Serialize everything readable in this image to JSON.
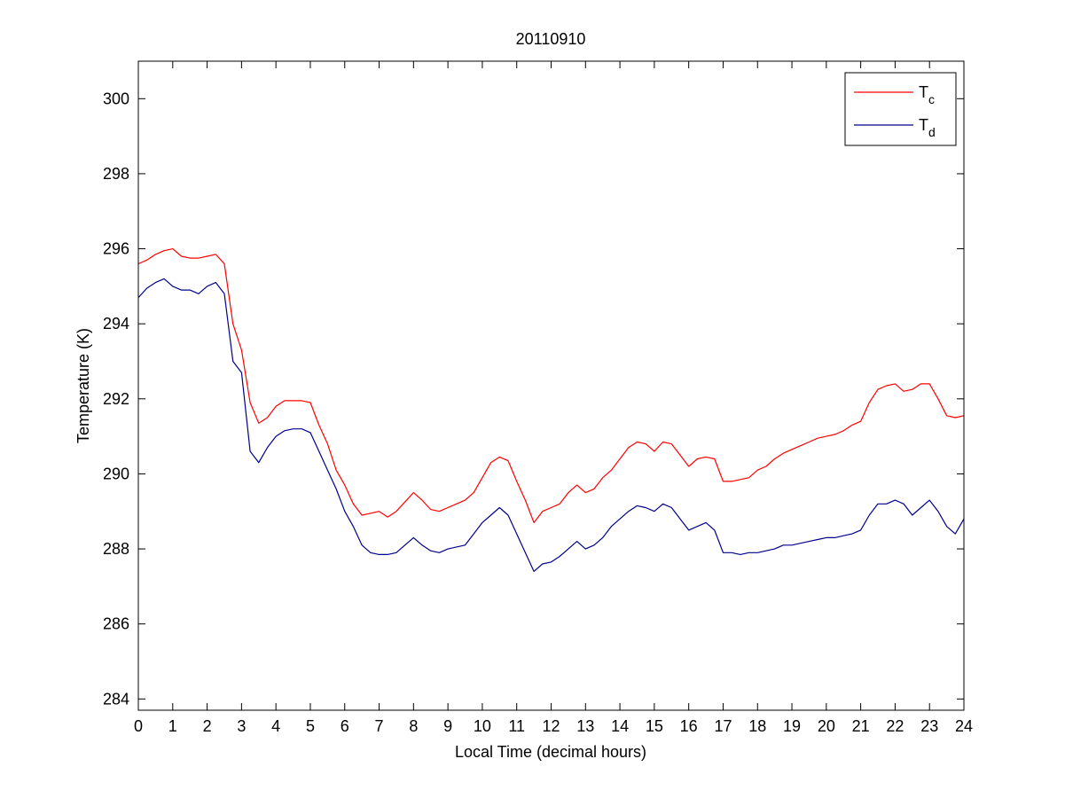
{
  "chart_data": {
    "type": "line",
    "title": "20110910",
    "xlabel": "Local Time (decimal hours)",
    "ylabel": "Temperature (K)",
    "xlim": [
      0,
      24
    ],
    "ylim": [
      283.7,
      301
    ],
    "xticks": [
      0,
      1,
      2,
      3,
      4,
      5,
      6,
      7,
      8,
      9,
      10,
      11,
      12,
      13,
      14,
      15,
      16,
      17,
      18,
      19,
      20,
      21,
      22,
      23,
      24
    ],
    "yticks": [
      284,
      286,
      288,
      290,
      292,
      294,
      296,
      298,
      300
    ],
    "grid": false,
    "legend": {
      "position": "top-right",
      "entries": [
        {
          "main": "T",
          "sub": "c",
          "color": "#ff0000"
        },
        {
          "main": "T",
          "sub": "d",
          "color": "#00008b"
        }
      ]
    },
    "series": [
      {
        "color": "#ff0000",
        "x": [
          0,
          0.25,
          0.5,
          0.75,
          1,
          1.25,
          1.5,
          1.75,
          2,
          2.25,
          2.5,
          2.75,
          3,
          3.25,
          3.5,
          3.75,
          4,
          4.25,
          4.5,
          4.75,
          5,
          5.25,
          5.5,
          5.75,
          6,
          6.25,
          6.5,
          6.75,
          7,
          7.25,
          7.5,
          7.75,
          8,
          8.25,
          8.5,
          8.75,
          9,
          9.25,
          9.5,
          9.75,
          10,
          10.25,
          10.5,
          10.75,
          11,
          11.25,
          11.5,
          11.75,
          12,
          12.25,
          12.5,
          12.75,
          13,
          13.25,
          13.5,
          13.75,
          14,
          14.25,
          14.5,
          14.75,
          15,
          15.25,
          15.5,
          15.75,
          16,
          16.25,
          16.5,
          16.75,
          17,
          17.25,
          17.5,
          17.75,
          18,
          18.25,
          18.5,
          18.75,
          19,
          19.25,
          19.5,
          19.75,
          20,
          20.25,
          20.5,
          20.75,
          21,
          21.25,
          21.5,
          21.75,
          22,
          22.25,
          22.5,
          22.75,
          23,
          23.25,
          23.5,
          23.75,
          24
        ],
        "values": [
          295.6,
          295.7,
          295.85,
          295.95,
          296.0,
          295.8,
          295.75,
          295.75,
          295.8,
          295.85,
          295.6,
          294.0,
          293.3,
          291.9,
          291.35,
          291.5,
          291.8,
          291.95,
          291.95,
          291.95,
          291.9,
          291.3,
          290.8,
          290.1,
          289.7,
          289.2,
          288.9,
          288.95,
          289.0,
          288.85,
          289.0,
          289.25,
          289.5,
          289.3,
          289.05,
          289.0,
          289.1,
          289.2,
          289.3,
          289.5,
          289.9,
          290.3,
          290.45,
          290.35,
          289.8,
          289.3,
          288.7,
          289.0,
          289.1,
          289.2,
          289.5,
          289.7,
          289.5,
          289.6,
          289.9,
          290.1,
          290.4,
          290.7,
          290.85,
          290.8,
          290.6,
          290.85,
          290.8,
          290.5,
          290.2,
          290.4,
          290.45,
          290.4,
          289.8,
          289.8,
          289.85,
          289.9,
          290.1,
          290.2,
          290.4,
          290.55,
          290.65,
          290.75,
          290.85,
          290.95,
          291.0,
          291.05,
          291.15,
          291.3,
          291.4,
          291.9,
          292.25,
          292.35,
          292.4,
          292.2,
          292.25,
          292.4,
          292.4,
          292.0,
          291.55,
          291.5,
          291.55
        ]
      },
      {
        "color": "#00008b",
        "x": [
          0,
          0.25,
          0.5,
          0.75,
          1,
          1.25,
          1.5,
          1.75,
          2,
          2.25,
          2.5,
          2.75,
          3,
          3.25,
          3.5,
          3.75,
          4,
          4.25,
          4.5,
          4.75,
          5,
          5.25,
          5.5,
          5.75,
          6,
          6.25,
          6.5,
          6.75,
          7,
          7.25,
          7.5,
          7.75,
          8,
          8.25,
          8.5,
          8.75,
          9,
          9.25,
          9.5,
          9.75,
          10,
          10.25,
          10.5,
          10.75,
          11,
          11.25,
          11.5,
          11.75,
          12,
          12.25,
          12.5,
          12.75,
          13,
          13.25,
          13.5,
          13.75,
          14,
          14.25,
          14.5,
          14.75,
          15,
          15.25,
          15.5,
          15.75,
          16,
          16.25,
          16.5,
          16.75,
          17,
          17.25,
          17.5,
          17.75,
          18,
          18.25,
          18.5,
          18.75,
          19,
          19.25,
          19.5,
          19.75,
          20,
          20.25,
          20.5,
          20.75,
          21,
          21.25,
          21.5,
          21.75,
          22,
          22.25,
          22.5,
          22.75,
          23,
          23.25,
          23.5,
          23.75,
          24
        ],
        "values": [
          294.7,
          294.95,
          295.1,
          295.2,
          295.0,
          294.9,
          294.9,
          294.8,
          295.0,
          295.1,
          294.8,
          293.0,
          292.7,
          290.6,
          290.3,
          290.7,
          291.0,
          291.15,
          291.2,
          291.2,
          291.1,
          290.6,
          290.1,
          289.6,
          289.0,
          288.6,
          288.1,
          287.9,
          287.85,
          287.85,
          287.9,
          288.1,
          288.3,
          288.1,
          287.95,
          287.9,
          288.0,
          288.05,
          288.1,
          288.4,
          288.7,
          288.9,
          289.1,
          288.9,
          288.4,
          287.9,
          287.4,
          287.6,
          287.65,
          287.8,
          288.0,
          288.2,
          288.0,
          288.1,
          288.3,
          288.6,
          288.8,
          289.0,
          289.15,
          289.1,
          289.0,
          289.2,
          289.1,
          288.8,
          288.5,
          288.6,
          288.7,
          288.5,
          287.9,
          287.9,
          287.85,
          287.9,
          287.9,
          287.95,
          288.0,
          288.1,
          288.1,
          288.15,
          288.2,
          288.25,
          288.3,
          288.3,
          288.35,
          288.4,
          288.5,
          288.9,
          289.2,
          289.2,
          289.3,
          289.2,
          288.9,
          289.1,
          289.3,
          289.0,
          288.6,
          288.4,
          288.8
        ]
      }
    ]
  }
}
